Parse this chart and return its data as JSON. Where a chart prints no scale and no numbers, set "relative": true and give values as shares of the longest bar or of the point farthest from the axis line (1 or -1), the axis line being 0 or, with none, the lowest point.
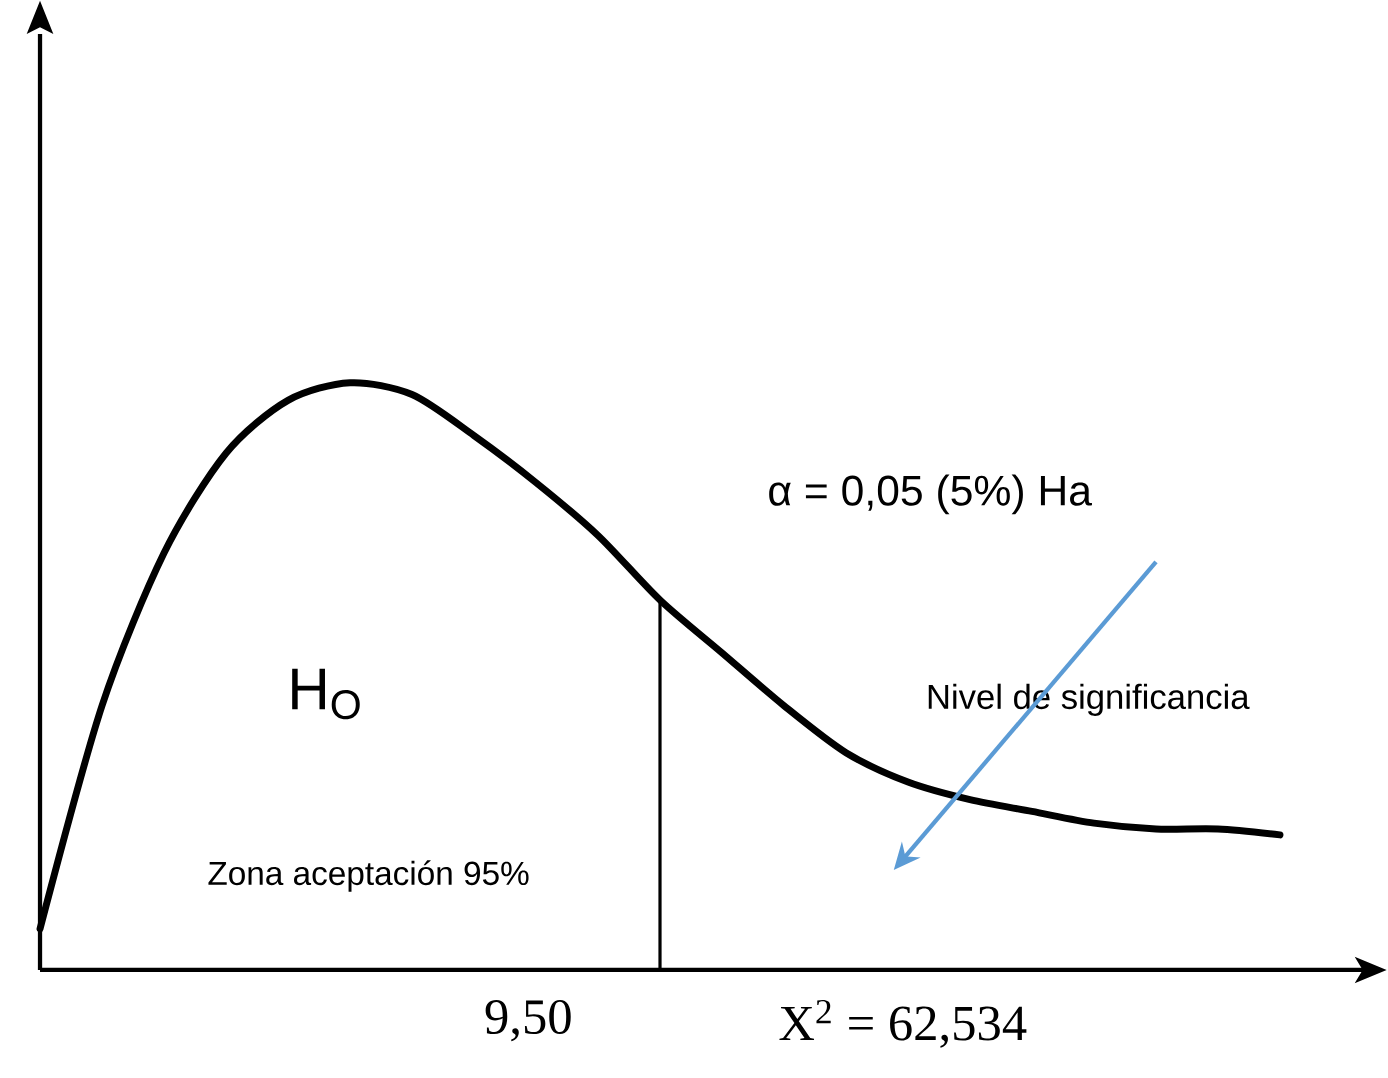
{
  "chart_data": {
    "type": "line",
    "relative": true,
    "color": "#000000",
    "categories": [
      null,
      null,
      null,
      null,
      null,
      null,
      null,
      null,
      null,
      null,
      null,
      null,
      null,
      null,
      null,
      null,
      null,
      null,
      null,
      null,
      null
    ],
    "values": [
      0.07,
      0.45,
      0.71,
      0.88,
      0.97,
      1,
      0.98,
      0.91,
      0.83,
      0.74,
      0.63,
      0.54,
      0.45,
      0.37,
      0.32,
      0.29,
      0.27,
      0.25,
      0.24,
      0.24,
      0.23
    ],
    "annotations": [
      "α = 0,05 (5%) Ha",
      "Nivel de significancia",
      "H$_{O}$",
      "Zona aceptación 95%",
      "X$^{2}$ = 62,534",
      "9,50"
    ]
  }
}
